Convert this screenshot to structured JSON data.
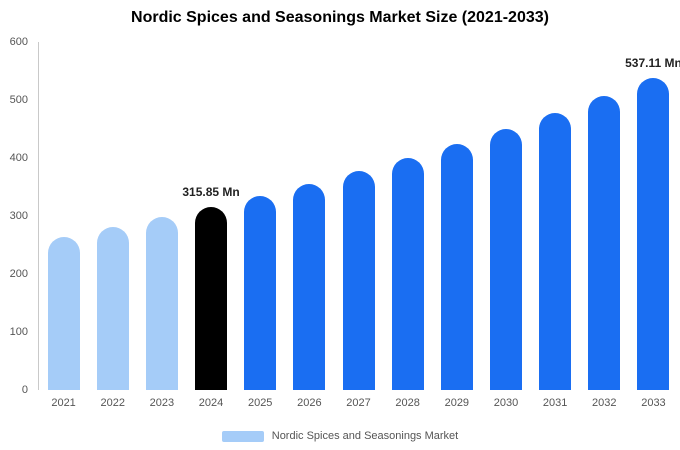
{
  "title": "Nordic Spices and Seasonings Market Size (2021-2033)",
  "legend": {
    "label": "Nordic Spices and Seasonings Market",
    "swatch_color": "#a5ccf8"
  },
  "chart_data": {
    "type": "bar",
    "title": "Nordic Spices and Seasonings Market Size (2021-2033)",
    "xlabel": "",
    "ylabel": "",
    "ylim": [
      0,
      600
    ],
    "yticks": [
      0,
      100,
      200,
      300,
      400,
      500,
      600
    ],
    "grid": false,
    "legend_position": "bottom",
    "categories": [
      "2021",
      "2022",
      "2023",
      "2024",
      "2025",
      "2026",
      "2027",
      "2028",
      "2029",
      "2030",
      "2031",
      "2032",
      "2033"
    ],
    "values": [
      264.6,
      280.7,
      297.7,
      315.85,
      335.1,
      355.4,
      377.1,
      400.0,
      424.3,
      450.1,
      477.5,
      506.5,
      537.11
    ],
    "bar_colors": [
      "#a5ccf8",
      "#a5ccf8",
      "#a5ccf8",
      "#000000",
      "#1a6ef2",
      "#1a6ef2",
      "#1a6ef2",
      "#1a6ef2",
      "#1a6ef2",
      "#1a6ef2",
      "#1a6ef2",
      "#1a6ef2",
      "#1a6ef2"
    ],
    "colors": {
      "historical_bar": "#a5ccf8",
      "base_year_bar": "#000000",
      "forecast_bar": "#1a6ef2",
      "axis_text": "#555555",
      "annotation_text": "#222222"
    },
    "annotations": [
      {
        "index": 3,
        "text": "315.85 Mn"
      },
      {
        "index": 12,
        "text": "537.11 Mn"
      }
    ]
  }
}
